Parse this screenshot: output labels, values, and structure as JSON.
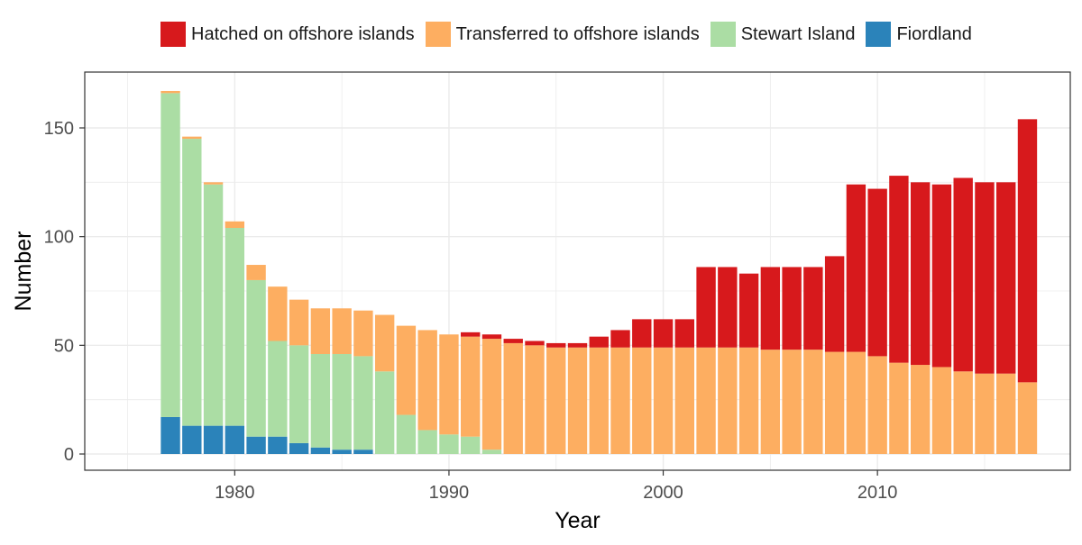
{
  "colors": {
    "hatched": "#d7191c",
    "transferred": "#fdae61",
    "stewart": "#abdda4",
    "fiordland": "#2b83ba",
    "grid": "#ebebeb",
    "axis_text": "#4d4d4d",
    "panel_border": "#333333"
  },
  "chart_data": {
    "type": "bar",
    "stacked": true,
    "xlabel": "Year",
    "ylabel": "Number",
    "xlim": [
      1973,
      2019
    ],
    "ylim": [
      0,
      170
    ],
    "x_ticks": [
      1980,
      1990,
      2000,
      2010
    ],
    "x_tick_labels": [
      "1980",
      "1990",
      "2000",
      "2010"
    ],
    "y_ticks": [
      0,
      50,
      100,
      150
    ],
    "y_tick_labels": [
      "0",
      "50",
      "100",
      "150"
    ],
    "legend_position": "top",
    "x": [
      1977,
      1978,
      1979,
      1980,
      1981,
      1982,
      1983,
      1984,
      1985,
      1986,
      1987,
      1988,
      1989,
      1990,
      1991,
      1992,
      1993,
      1994,
      1995,
      1996,
      1997,
      1998,
      1999,
      2000,
      2001,
      2002,
      2003,
      2004,
      2005,
      2006,
      2007,
      2008,
      2009,
      2010,
      2011,
      2012,
      2013,
      2014,
      2015,
      2016,
      2017
    ],
    "series": [
      {
        "name": "Fiordland",
        "color_key": "fiordland",
        "values": [
          17,
          13,
          13,
          13,
          8,
          8,
          5,
          3,
          2,
          2,
          0,
          0,
          0,
          0,
          0,
          0,
          0,
          0,
          0,
          0,
          0,
          0,
          0,
          0,
          0,
          0,
          0,
          0,
          0,
          0,
          0,
          0,
          0,
          0,
          0,
          0,
          0,
          0,
          0,
          0,
          0
        ]
      },
      {
        "name": "Stewart Island",
        "color_key": "stewart",
        "values": [
          149,
          132,
          111,
          91,
          72,
          44,
          45,
          43,
          44,
          43,
          38,
          18,
          11,
          9,
          8,
          2,
          0,
          0,
          0,
          0,
          0,
          0,
          0,
          0,
          0,
          0,
          0,
          0,
          0,
          0,
          0,
          0,
          0,
          0,
          0,
          0,
          0,
          0,
          0,
          0,
          0
        ]
      },
      {
        "name": "Transferred to offshore islands",
        "color_key": "transferred",
        "values": [
          1,
          1,
          1,
          3,
          7,
          25,
          21,
          21,
          21,
          21,
          26,
          41,
          46,
          46,
          46,
          51,
          51,
          50,
          49,
          49,
          49,
          49,
          49,
          49,
          49,
          49,
          49,
          49,
          48,
          48,
          48,
          47,
          47,
          45,
          42,
          41,
          40,
          38,
          37,
          37,
          33
        ]
      },
      {
        "name": "Hatched on offshore islands",
        "color_key": "hatched",
        "values": [
          0,
          0,
          0,
          0,
          0,
          0,
          0,
          0,
          0,
          0,
          0,
          0,
          0,
          0,
          2,
          2,
          2,
          2,
          2,
          2,
          5,
          8,
          13,
          13,
          13,
          37,
          37,
          34,
          38,
          38,
          38,
          44,
          77,
          77,
          86,
          84,
          84,
          89,
          88,
          88,
          121
        ]
      }
    ],
    "legend_order": [
      "Hatched on offshore islands",
      "Transferred to offshore islands",
      "Stewart Island",
      "Fiordland"
    ]
  }
}
